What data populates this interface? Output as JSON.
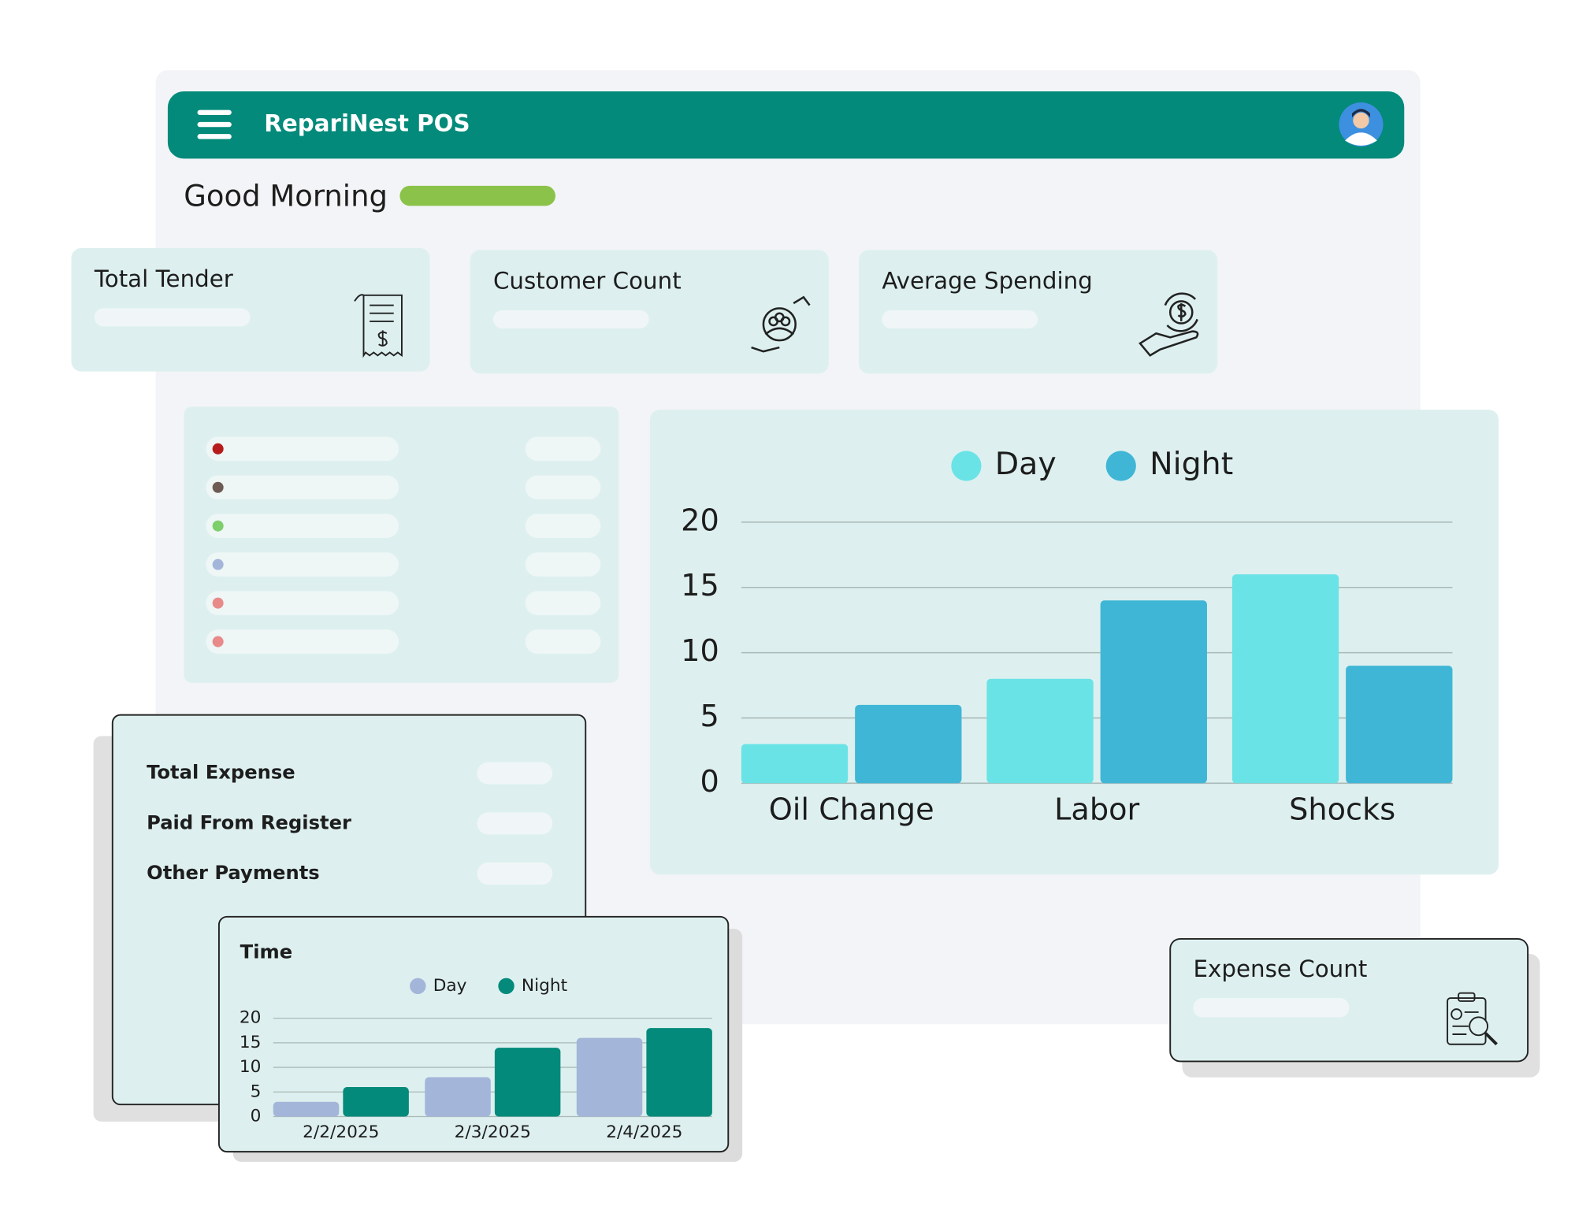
{
  "header": {
    "title": "RepariNest POS"
  },
  "greeting": "Good Morning",
  "cards": [
    {
      "label": "Total Tender"
    },
    {
      "label": "Customer Count"
    },
    {
      "label": "Average Spending"
    }
  ],
  "expense_panel": {
    "rows": [
      "Total Expense",
      "Paid From Register",
      "Other Payments"
    ]
  },
  "expense_count_card": {
    "label": "Expense Count"
  },
  "chart_data": [
    {
      "type": "bar",
      "categories": [
        "Oil Change",
        "Labor",
        "Shocks"
      ],
      "series": [
        {
          "name": "Day",
          "color": "#6ae3e6",
          "values": [
            3,
            8,
            16
          ]
        },
        {
          "name": "Night",
          "color": "#40b6d6",
          "values": [
            6,
            14,
            9
          ]
        }
      ],
      "ylim": [
        0,
        20
      ],
      "yticks": [
        0,
        5,
        10,
        15,
        20
      ],
      "grid": true,
      "legend": "top"
    },
    {
      "type": "bar",
      "title": "Time",
      "categories": [
        "2/2/2025",
        "2/3/2025",
        "2/4/2025"
      ],
      "series": [
        {
          "name": "Day",
          "color": "#a3b5d9",
          "values": [
            3,
            8,
            16
          ]
        },
        {
          "name": "Night",
          "color": "#038a7a",
          "values": [
            6,
            14,
            18
          ]
        }
      ],
      "ylim": [
        0,
        20
      ],
      "yticks": [
        0,
        5,
        10,
        15,
        20
      ],
      "grid": true,
      "legend": "top"
    }
  ]
}
